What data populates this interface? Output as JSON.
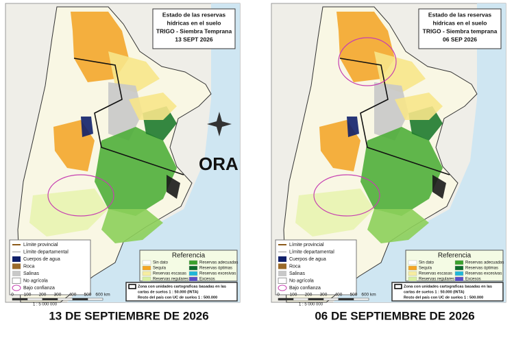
{
  "panels": [
    {
      "title_lines": [
        "Estado de las reservas",
        "hídricas en el suelo",
        "TRIGO - Siembra Temprana",
        "13 SEPT 2026"
      ],
      "logo": "ORA",
      "legend_left": [
        "Límite provincial",
        "Límite departamental",
        "Cuerpos de agua",
        "Roca",
        "Salinas",
        "No agrícola",
        "Bajo confianza"
      ],
      "legend_title": "Referencia",
      "legend_items": [
        "Sin dato",
        "Reservas adecuadas",
        "Sequía",
        "Reservas óptimas",
        "Reservas escasas",
        "Reservas excesivas",
        "Reservas regulares",
        "Excesos"
      ],
      "scale_labels": [
        "0",
        "100",
        "200",
        "300",
        "400",
        "500",
        "600 km"
      ],
      "scale_ratio": "1 : 5 000 000",
      "note": [
        "Zona con unidades cartograficas basadas en las",
        "cartas de suelos 1 : 50.000 (INTA)",
        "Resto del país con UC de suelos 1 : 500.000"
      ],
      "caption": "13 DE SEPTIEMBRE DE 2026"
    },
    {
      "title_lines": [
        "Estado de las reservas",
        "hídricas en el suelo",
        "TRIGO - Siembra temprana",
        "06 SEP 2026"
      ],
      "legend_left": [
        "Límite provincial",
        "Límite departamental",
        "Cuerpos de agua",
        "Roca",
        "Salinas",
        "No agrícola",
        "Bajo confianza"
      ],
      "legend_title": "Referencia",
      "legend_items": [
        "Sin dato",
        "Reservas adecuadas",
        "Sequía",
        "Reservas óptimas",
        "Reservas escasas",
        "Reservas excesivas",
        "Reservas regulares",
        "Excesos"
      ],
      "scale_labels": [
        "0",
        "100",
        "200",
        "300",
        "400",
        "500",
        "600 km"
      ],
      "scale_ratio": "1 : 5 000 000",
      "note": [
        "Zona con unidades cartograficas basadas en las",
        "cartas de suelos 1 : 50.000 (INTA)",
        "Resto del país con UC de suelos 1 : 500.000"
      ],
      "caption": "06 DE SEPTIEMBRE DE 2026"
    }
  ]
}
